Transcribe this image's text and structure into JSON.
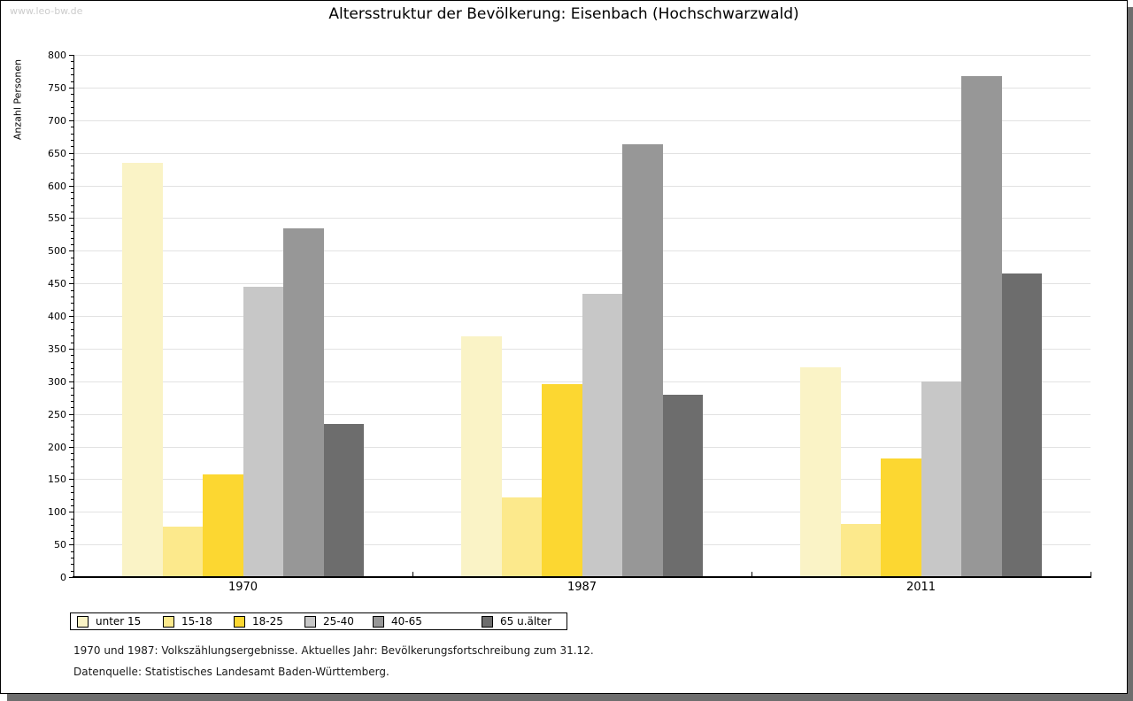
{
  "watermark": "www.leo-bw.de",
  "chart_data": {
    "type": "bar",
    "title": "Altersstruktur der Bevölkerung: Eisenbach (Hochschwarzwald)",
    "ylabel": "Anzahl Personen",
    "categories": [
      "1970",
      "1987",
      "2011"
    ],
    "series": [
      {
        "name": "unter 15",
        "color": "#FAF3C6",
        "values": [
          635,
          369,
          322
        ]
      },
      {
        "name": "15-18",
        "color": "#FCE98C",
        "values": [
          77,
          122,
          82
        ]
      },
      {
        "name": "18-25",
        "color": "#FCD731",
        "values": [
          157,
          295,
          182
        ]
      },
      {
        "name": "25-40",
        "color": "#C7C7C7",
        "values": [
          445,
          434,
          300
        ]
      },
      {
        "name": "40-65",
        "color": "#979797",
        "values": [
          534,
          663,
          767
        ]
      },
      {
        "name": "65 u.älter",
        "color": "#6D6D6D",
        "values": [
          234,
          279,
          465
        ]
      }
    ],
    "ylim": [
      0,
      800
    ],
    "ytick_step": 50,
    "yminor_step": 10,
    "grid": true,
    "legend_position": "bottom"
  },
  "footnotes": [
    "1970 und 1987: Volkszählungsergebnisse. Aktuelles Jahr: Bevölkerungsfortschreibung zum 31.12.",
    "Datenquelle: Statistisches Landesamt Baden-Württemberg."
  ]
}
